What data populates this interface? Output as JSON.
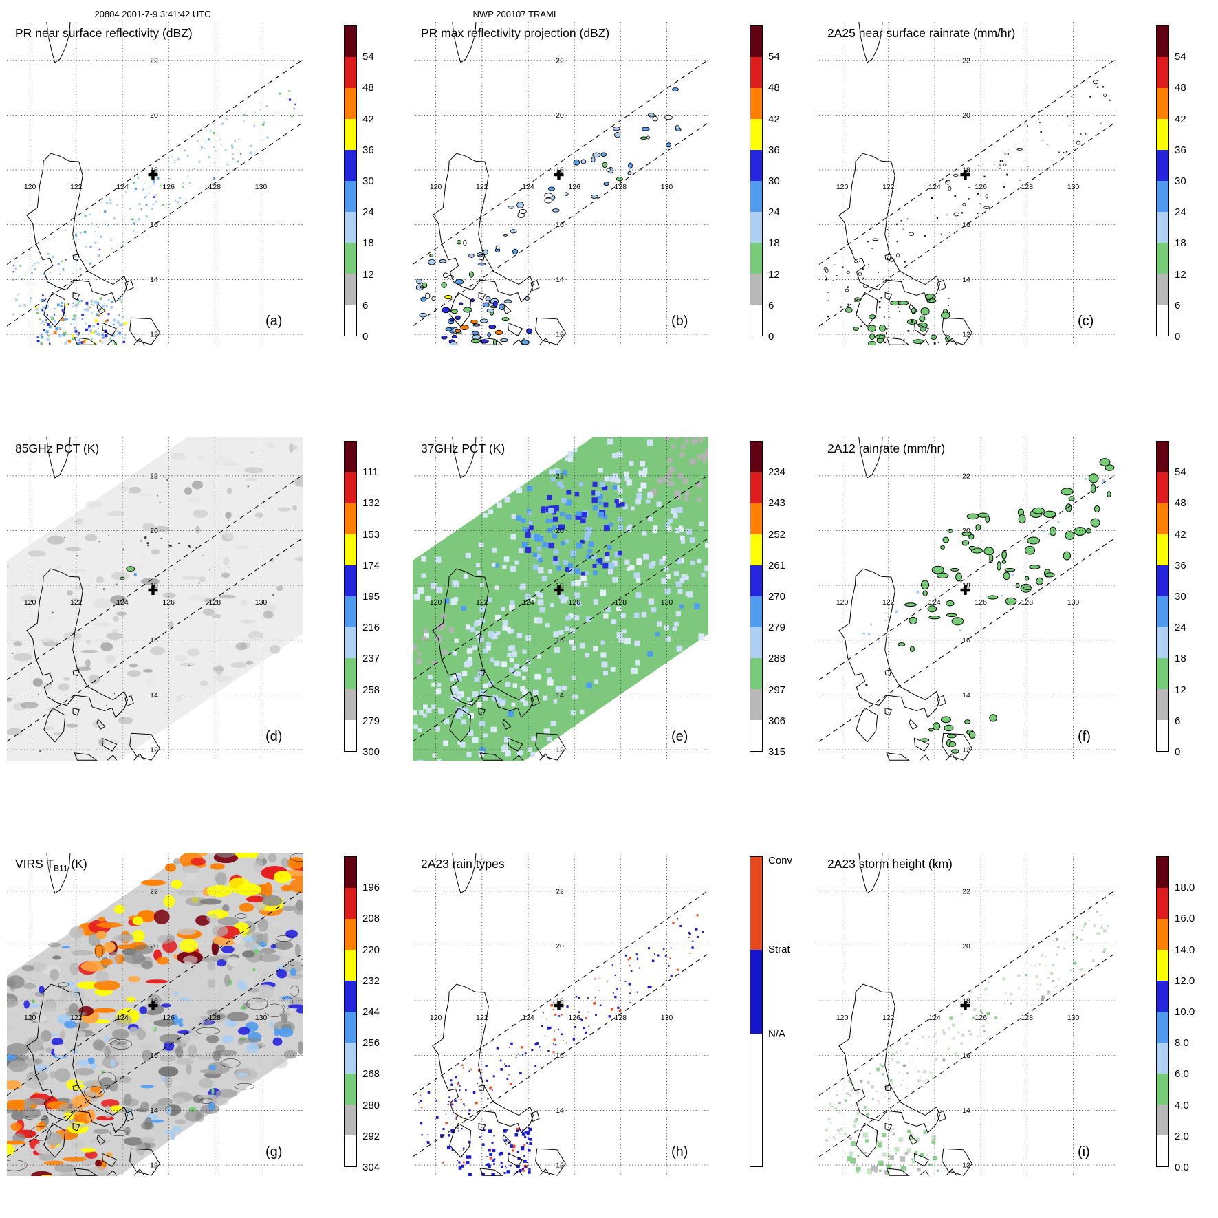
{
  "header": {
    "datetime_label": "20804 2001-7-9 3:41:42 UTC",
    "storm_label": "NWP 200107 TRAMI"
  },
  "axes": {
    "lon_ticks": [
      "120",
      "122",
      "124",
      "126",
      "128",
      "130"
    ],
    "lat_ticks": [
      "22",
      "20",
      "18",
      "16",
      "14",
      "12"
    ]
  },
  "storm_marker": {
    "symbol": "+",
    "lon_deg": 125.5,
    "lat_deg": 17.9
  },
  "scale_colors_top_to_bottom": [
    "#600010",
    "#dd1c1c",
    "#ff8000",
    "#ffff00",
    "#2525dd",
    "#4f9bf0",
    "#aed0f2",
    "#77cc77",
    "#b8b8b8",
    "#ffffff"
  ],
  "rain_type_colors": {
    "convective": "#e8491d",
    "stratiform": "#1515cc",
    "not_available": "#ffffff"
  },
  "chart_data": {
    "type": "heatmap",
    "layout": "3x3 grid of satellite swath maps over the Luzon / Philippines region with dotted lat-lon graticule, dashed PR swath edge lines and a cross marking the storm center",
    "panels": [
      {
        "letter": "(a)",
        "title": "PR near surface reflectivity (dBZ)",
        "units": "dBZ",
        "style": "pr_refl",
        "cbar": "scale",
        "cbar_ticks": [
          "54",
          "48",
          "42",
          "36",
          "30",
          "24",
          "18",
          "12",
          "6",
          "0"
        ]
      },
      {
        "letter": "(b)",
        "title": "PR max reflectivity projection (dBZ)",
        "units": "dBZ",
        "style": "pr_maxrefl",
        "cbar": "scale",
        "cbar_ticks": [
          "54",
          "48",
          "42",
          "36",
          "30",
          "24",
          "18",
          "12",
          "6",
          "0"
        ]
      },
      {
        "letter": "(c)",
        "title": "2A25 near surface rainrate (mm/hr)",
        "units": "mm/hr",
        "style": "rr25",
        "cbar": "scale",
        "cbar_ticks": [
          "54",
          "48",
          "42",
          "36",
          "30",
          "24",
          "18",
          "12",
          "6",
          "0"
        ]
      },
      {
        "letter": "(d)",
        "title": "85GHz PCT (K)",
        "units": "K",
        "style": "pct85",
        "cbar": "scale",
        "cbar_ticks": [
          "111",
          "132",
          "153",
          "174",
          "195",
          "216",
          "237",
          "258",
          "279",
          "300"
        ]
      },
      {
        "letter": "(e)",
        "title": "37GHz PCT (K)",
        "units": "K",
        "style": "pct37",
        "cbar": "scale",
        "cbar_ticks": [
          "234",
          "243",
          "252",
          "261",
          "270",
          "279",
          "288",
          "297",
          "306",
          "315"
        ]
      },
      {
        "letter": "(f)",
        "title": "2A12 rainrate (mm/hr)",
        "units": "mm/hr",
        "style": "rr12",
        "cbar": "scale",
        "cbar_ticks": [
          "54",
          "48",
          "42",
          "36",
          "30",
          "24",
          "18",
          "12",
          "6",
          "0"
        ]
      },
      {
        "letter": "(g)",
        "title": "VIRS TB11 (K)",
        "title_pre": "VIRS T",
        "title_sub": "B11",
        "title_post": " (K)",
        "units": "K",
        "style": "virs",
        "cbar": "scale",
        "cbar_ticks": [
          "196",
          "208",
          "220",
          "232",
          "244",
          "256",
          "268",
          "280",
          "292",
          "304"
        ]
      },
      {
        "letter": "(h)",
        "title": "2A23 rain types",
        "style": "rtypes",
        "cbar": "raintype",
        "cbar_labels": [
          "Conv",
          "Strat",
          "N/A"
        ]
      },
      {
        "letter": "(i)",
        "title": "2A23 storm height (km)",
        "units": "km",
        "style": "sheight",
        "cbar": "scale",
        "cbar_ticks": [
          "18.0",
          "16.0",
          "14.0",
          "12.0",
          "10.0",
          "8.0",
          "6.0",
          "4.0",
          "2.0",
          "0.0"
        ]
      }
    ]
  }
}
